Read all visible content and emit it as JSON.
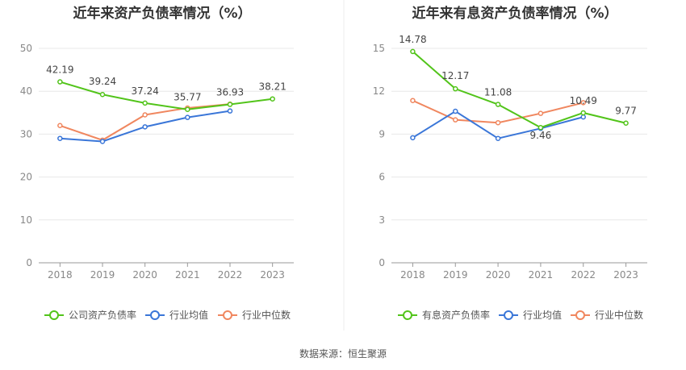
{
  "source": "数据来源：恒生聚源",
  "chart_data": [
    {
      "type": "line",
      "title": "近年来资产负债率情况（%）",
      "categories": [
        "2018",
        "2019",
        "2020",
        "2021",
        "2022",
        "2023"
      ],
      "ylim": [
        0,
        50
      ],
      "yticks": [
        0,
        10,
        20,
        30,
        40,
        50
      ],
      "grid": true,
      "legend_position": "bottom",
      "series": [
        {
          "name": "公司资产负债率",
          "color": "#52c41a",
          "values": [
            42.19,
            39.24,
            37.24,
            35.77,
            36.93,
            38.21
          ],
          "labels": [
            "42.19",
            "39.24",
            "37.24",
            "35.77",
            "36.93",
            "38.21"
          ]
        },
        {
          "name": "行业均值",
          "color": "#3a76d8",
          "values": [
            29.0,
            28.3,
            31.7,
            33.9,
            35.4,
            null
          ]
        },
        {
          "name": "行业中位数",
          "color": "#f0875f",
          "values": [
            32.0,
            28.6,
            34.5,
            36.1,
            37.0,
            null
          ]
        }
      ]
    },
    {
      "type": "line",
      "title": "近年来有息资产负债率情况（%）",
      "categories": [
        "2018",
        "2019",
        "2020",
        "2021",
        "2022",
        "2023"
      ],
      "ylim": [
        0,
        15
      ],
      "yticks": [
        0,
        3,
        6,
        9,
        12,
        15
      ],
      "grid": true,
      "legend_position": "bottom",
      "series": [
        {
          "name": "有息资产负债率",
          "color": "#52c41a",
          "values": [
            14.78,
            12.17,
            11.08,
            9.46,
            10.49,
            9.77
          ],
          "labels": [
            "14.78",
            "12.17",
            "11.08",
            "9.46",
            "10.49",
            "9.77"
          ]
        },
        {
          "name": "行业均值",
          "color": "#3a76d8",
          "values": [
            8.75,
            10.6,
            8.7,
            9.4,
            10.2,
            null
          ]
        },
        {
          "name": "行业中位数",
          "color": "#f0875f",
          "values": [
            11.35,
            10.0,
            9.8,
            10.45,
            11.2,
            null
          ]
        }
      ]
    }
  ]
}
